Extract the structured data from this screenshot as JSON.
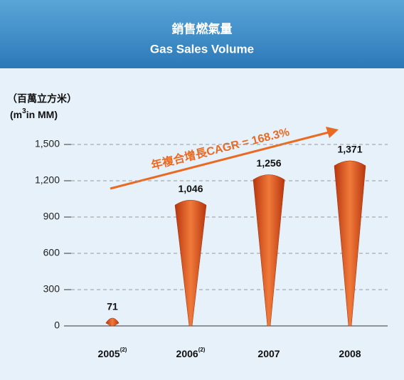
{
  "chart_data": {
    "type": "bar",
    "title": "銷售燃氣量",
    "subtitle": "Gas Sales Volume",
    "y_label": "（百萬立方米）",
    "y_unit_parts": [
      "(m",
      "3",
      "in MM)"
    ],
    "annotation": "年複合增長CAGR = 168.3%",
    "categories": [
      "2005",
      "2006",
      "2007",
      "2008"
    ],
    "category_notes": [
      "(2)",
      "(2)",
      null,
      null
    ],
    "values": [
      71,
      1046,
      1256,
      1371
    ],
    "value_labels": [
      "71",
      "1,046",
      "1,256",
      "1,371"
    ],
    "color": "#e0521c",
    "ylim": [
      0,
      1500
    ],
    "yticks": [
      0,
      300,
      600,
      900,
      {
        "value": 1200,
        "label": "1,200"
      },
      {
        "value": 1500,
        "label": "1,500"
      }
    ],
    "grid": true
  }
}
